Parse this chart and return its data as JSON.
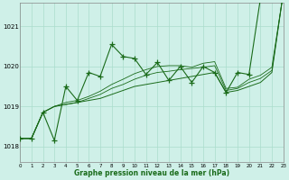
{
  "background_color": "#cff0e8",
  "grid_color": "#aaddcc",
  "line_color": "#1a6b1a",
  "xlabel": "Graphe pression niveau de la mer (hPa)",
  "xlim": [
    0,
    23
  ],
  "ylim": [
    1017.6,
    1021.6
  ],
  "yticks": [
    1018,
    1019,
    1020,
    1021
  ],
  "xticks": [
    0,
    1,
    2,
    3,
    4,
    5,
    6,
    7,
    8,
    9,
    10,
    11,
    12,
    13,
    14,
    15,
    16,
    17,
    18,
    19,
    20,
    21,
    22,
    23
  ],
  "series_jagged": [
    1018.2,
    1018.2,
    1018.85,
    1018.15,
    1019.5,
    1019.15,
    1019.85,
    1019.75,
    1020.55,
    1020.25,
    1020.2,
    1019.8,
    1020.1,
    1019.65,
    1020.0,
    1019.6,
    1020.0,
    1019.85,
    1019.35,
    1019.85,
    1019.8,
    1021.7,
    1021.85,
    null
  ],
  "series_straight": [
    1018.2,
    1018.2,
    1018.85,
    1019.0,
    1019.05,
    1019.1,
    1019.15,
    1019.2,
    1019.3,
    1019.4,
    1019.5,
    1019.55,
    1019.6,
    1019.65,
    1019.7,
    1019.75,
    1019.8,
    1019.85,
    1019.35,
    1019.4,
    1019.5,
    1019.6,
    1019.85,
    1021.85
  ],
  "series_mid1": [
    1018.2,
    1018.2,
    1018.85,
    1019.0,
    1019.05,
    1019.1,
    1019.2,
    1019.3,
    1019.45,
    1019.55,
    1019.68,
    1019.78,
    1019.85,
    1019.88,
    1019.92,
    1019.95,
    1019.98,
    1020.02,
    1019.4,
    1019.45,
    1019.6,
    1019.7,
    1019.9,
    1021.85
  ],
  "series_mid2": [
    1018.2,
    1018.2,
    1018.85,
    1019.0,
    1019.1,
    1019.15,
    1019.25,
    1019.38,
    1019.55,
    1019.68,
    1019.82,
    1019.92,
    1020.0,
    1020.02,
    1020.02,
    1019.98,
    1020.08,
    1020.12,
    1019.45,
    1019.48,
    1019.68,
    1019.78,
    1019.98,
    1021.85
  ]
}
